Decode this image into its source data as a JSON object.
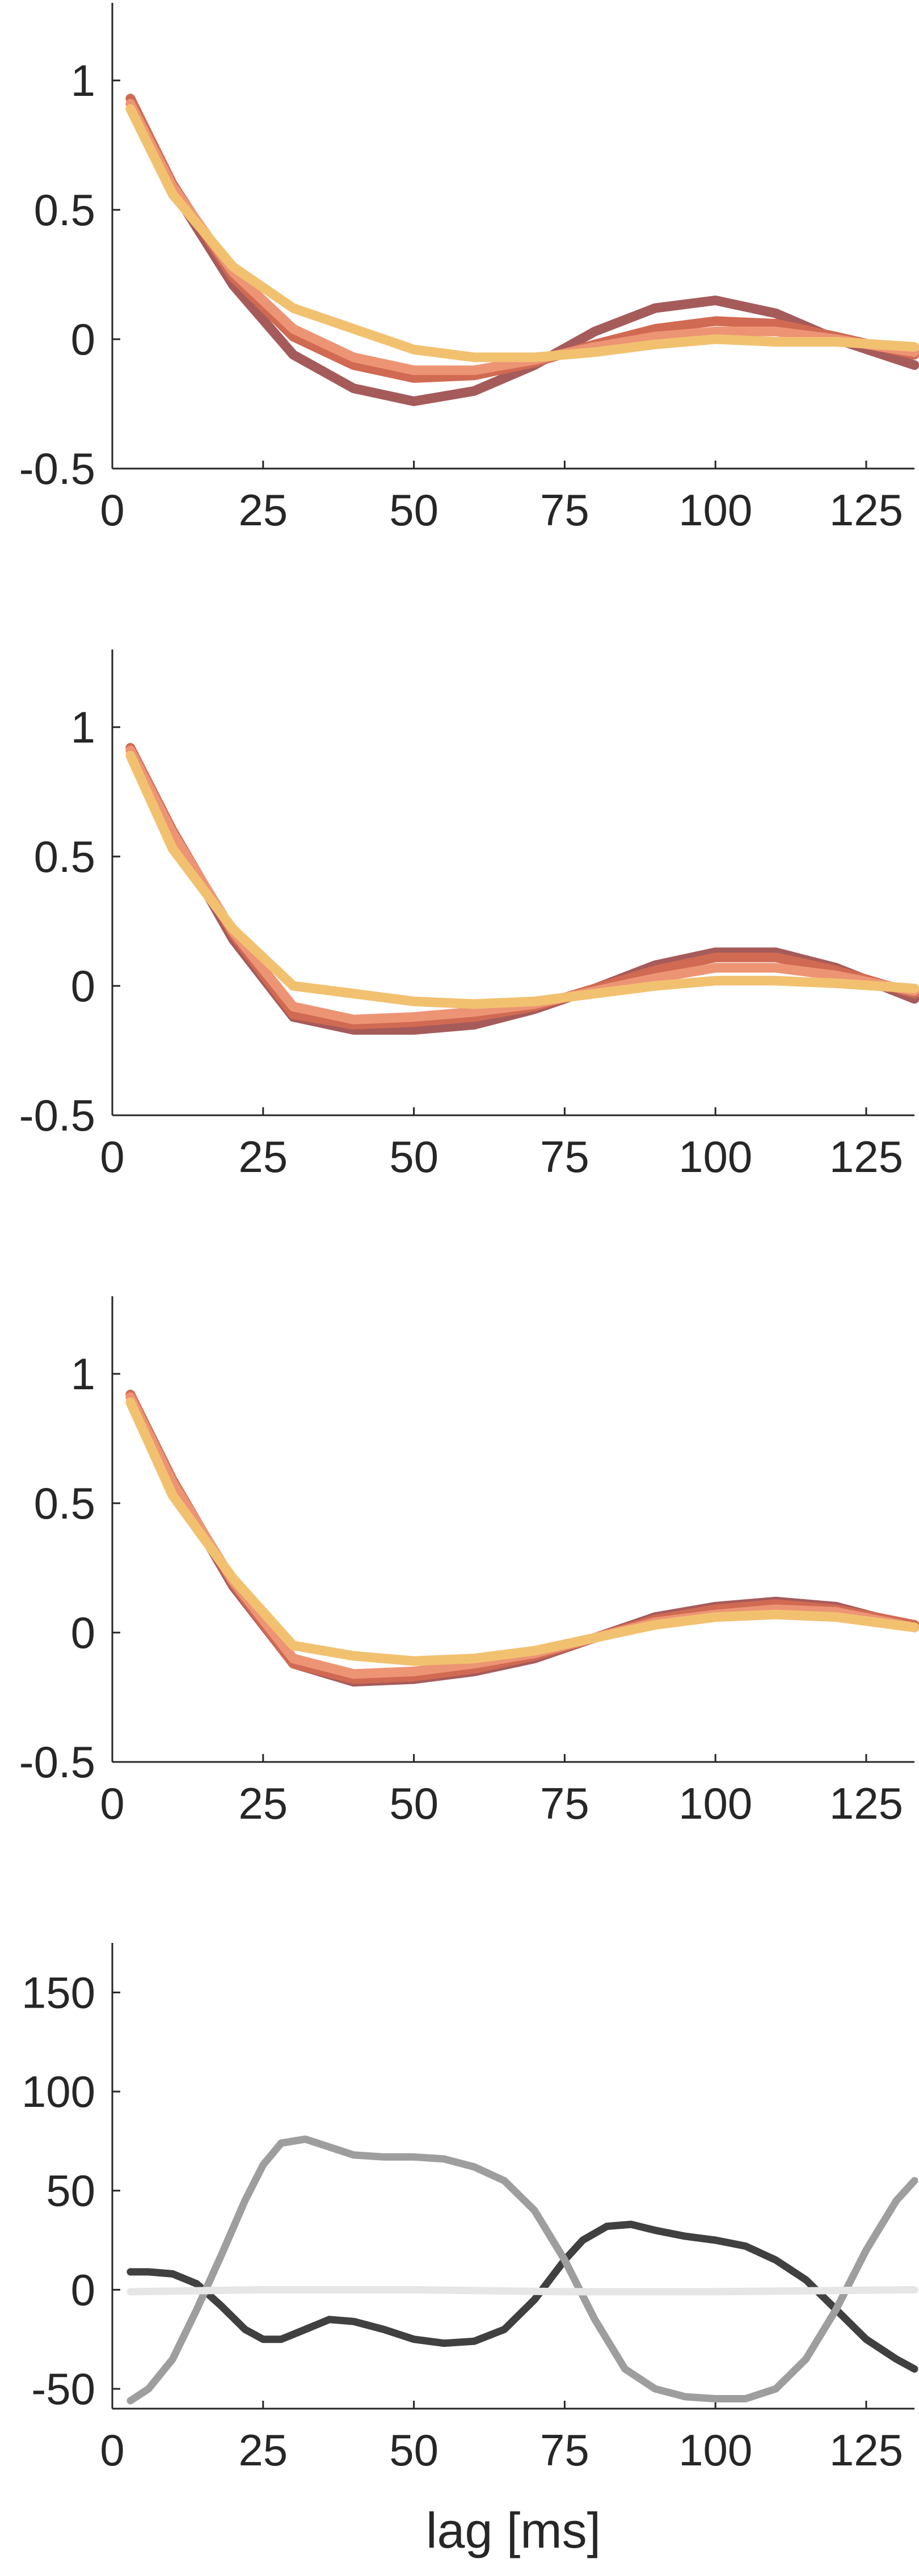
{
  "chart_data": [
    {
      "type": "line",
      "xlabel": "",
      "ylabel": "",
      "xlim": [
        0,
        133
      ],
      "ylim": [
        -0.5,
        1.3
      ],
      "xticks": [
        0,
        25,
        50,
        75,
        100,
        125
      ],
      "yticks": [
        -0.5,
        0,
        0.5,
        1
      ],
      "grid": false,
      "series": [
        {
          "color": "#a65b5b",
          "x": [
            3,
            10,
            20,
            30,
            40,
            50,
            60,
            70,
            80,
            90,
            100,
            110,
            120,
            133
          ],
          "y": [
            0.93,
            0.58,
            0.21,
            -0.06,
            -0.19,
            -0.24,
            -0.2,
            -0.1,
            0.03,
            0.12,
            0.15,
            0.1,
            0.0,
            -0.1
          ]
        },
        {
          "color": "#d16a52",
          "x": [
            3,
            10,
            20,
            30,
            40,
            50,
            60,
            70,
            80,
            90,
            100,
            110,
            120,
            133
          ],
          "y": [
            0.93,
            0.6,
            0.24,
            0.01,
            -0.1,
            -0.15,
            -0.14,
            -0.09,
            -0.02,
            0.04,
            0.07,
            0.06,
            0.01,
            -0.06
          ]
        },
        {
          "color": "#ed9475",
          "x": [
            3,
            10,
            20,
            30,
            40,
            50,
            60,
            70,
            80,
            90,
            100,
            110,
            120,
            133
          ],
          "y": [
            0.91,
            0.59,
            0.26,
            0.04,
            -0.07,
            -0.12,
            -0.12,
            -0.08,
            -0.03,
            0.01,
            0.03,
            0.03,
            0.0,
            -0.05
          ]
        },
        {
          "color": "#f2c170",
          "x": [
            3,
            10,
            20,
            30,
            40,
            50,
            60,
            70,
            80,
            90,
            100,
            110,
            120,
            133
          ],
          "y": [
            0.89,
            0.56,
            0.28,
            0.12,
            0.04,
            -0.04,
            -0.07,
            -0.07,
            -0.05,
            -0.02,
            0.0,
            -0.01,
            -0.01,
            -0.03
          ]
        }
      ]
    },
    {
      "type": "line",
      "xlabel": "",
      "ylabel": "",
      "xlim": [
        0,
        133
      ],
      "ylim": [
        -0.5,
        1.3
      ],
      "xticks": [
        0,
        25,
        50,
        75,
        100,
        125
      ],
      "yticks": [
        -0.5,
        0,
        0.5,
        1
      ],
      "grid": false,
      "series": [
        {
          "color": "#a65b5b",
          "x": [
            3,
            10,
            20,
            30,
            40,
            50,
            60,
            70,
            80,
            90,
            100,
            110,
            120,
            133
          ],
          "y": [
            0.92,
            0.59,
            0.18,
            -0.12,
            -0.17,
            -0.17,
            -0.15,
            -0.09,
            -0.01,
            0.08,
            0.13,
            0.13,
            0.07,
            -0.05
          ]
        },
        {
          "color": "#d16a52",
          "x": [
            3,
            10,
            20,
            30,
            40,
            50,
            60,
            70,
            80,
            90,
            100,
            110,
            120,
            133
          ],
          "y": [
            0.92,
            0.6,
            0.2,
            -0.11,
            -0.15,
            -0.14,
            -0.12,
            -0.08,
            -0.01,
            0.06,
            0.11,
            0.11,
            0.06,
            -0.03
          ]
        },
        {
          "color": "#ed9475",
          "x": [
            3,
            10,
            20,
            30,
            40,
            50,
            60,
            70,
            80,
            90,
            100,
            110,
            120,
            133
          ],
          "y": [
            0.91,
            0.59,
            0.21,
            -0.08,
            -0.13,
            -0.12,
            -0.1,
            -0.07,
            -0.02,
            0.03,
            0.07,
            0.07,
            0.04,
            -0.02
          ]
        },
        {
          "color": "#f2c170",
          "x": [
            3,
            10,
            20,
            30,
            40,
            50,
            60,
            70,
            80,
            90,
            100,
            110,
            120,
            133
          ],
          "y": [
            0.89,
            0.53,
            0.22,
            0.0,
            -0.03,
            -0.06,
            -0.07,
            -0.06,
            -0.03,
            0.0,
            0.02,
            0.02,
            0.01,
            -0.01
          ]
        }
      ]
    },
    {
      "type": "line",
      "xlabel": "",
      "ylabel": "",
      "xlim": [
        0,
        133
      ],
      "ylim": [
        -0.5,
        1.3
      ],
      "xticks": [
        0,
        25,
        50,
        75,
        100,
        125
      ],
      "yticks": [
        -0.5,
        0,
        0.5,
        1
      ],
      "grid": false,
      "series": [
        {
          "color": "#a65b5b",
          "x": [
            3,
            10,
            20,
            30,
            40,
            50,
            60,
            70,
            80,
            90,
            100,
            110,
            120,
            133
          ],
          "y": [
            0.92,
            0.58,
            0.18,
            -0.12,
            -0.19,
            -0.18,
            -0.15,
            -0.1,
            -0.02,
            0.06,
            0.1,
            0.12,
            0.1,
            0.02
          ]
        },
        {
          "color": "#d16a52",
          "x": [
            3,
            10,
            20,
            30,
            40,
            50,
            60,
            70,
            80,
            90,
            100,
            110,
            120,
            133
          ],
          "y": [
            0.92,
            0.59,
            0.19,
            -0.12,
            -0.18,
            -0.17,
            -0.14,
            -0.09,
            -0.02,
            0.05,
            0.09,
            0.11,
            0.09,
            0.03
          ]
        },
        {
          "color": "#ed9475",
          "x": [
            3,
            10,
            20,
            30,
            40,
            50,
            60,
            70,
            80,
            90,
            100,
            110,
            120,
            133
          ],
          "y": [
            0.91,
            0.58,
            0.2,
            -0.1,
            -0.16,
            -0.15,
            -0.12,
            -0.08,
            -0.02,
            0.04,
            0.07,
            0.09,
            0.08,
            0.02
          ]
        },
        {
          "color": "#f2c170",
          "x": [
            3,
            10,
            20,
            30,
            40,
            50,
            60,
            70,
            80,
            90,
            100,
            110,
            120,
            133
          ],
          "y": [
            0.89,
            0.53,
            0.21,
            -0.05,
            -0.09,
            -0.11,
            -0.1,
            -0.07,
            -0.02,
            0.03,
            0.06,
            0.07,
            0.06,
            0.02
          ]
        }
      ]
    },
    {
      "type": "line",
      "xlabel": "lag [ms]",
      "ylabel": "",
      "xlim": [
        0,
        133
      ],
      "ylim": [
        -60,
        175
      ],
      "xticks": [
        0,
        25,
        50,
        75,
        100,
        125
      ],
      "yticks": [
        -50,
        0,
        50,
        100,
        150
      ],
      "grid": false,
      "series": [
        {
          "color": "#404040",
          "x": [
            3,
            6,
            10,
            14,
            18,
            22,
            25,
            28,
            32,
            36,
            40,
            45,
            50,
            55,
            60,
            65,
            70,
            75,
            78,
            82,
            86,
            90,
            95,
            100,
            105,
            110,
            115,
            120,
            125,
            130,
            133
          ],
          "y": [
            9,
            9,
            8,
            3,
            -8,
            -20,
            -25,
            -25,
            -20,
            -15,
            -16,
            -20,
            -25,
            -27,
            -26,
            -20,
            -5,
            15,
            25,
            32,
            33,
            30,
            27,
            25,
            22,
            15,
            5,
            -10,
            -25,
            -35,
            -40
          ]
        },
        {
          "color": "#9e9e9e",
          "x": [
            3,
            6,
            10,
            14,
            18,
            22,
            25,
            28,
            32,
            36,
            40,
            45,
            50,
            55,
            60,
            65,
            70,
            75,
            80,
            85,
            90,
            95,
            100,
            105,
            110,
            115,
            120,
            125,
            130,
            133
          ],
          "y": [
            -56,
            -50,
            -35,
            -10,
            17,
            45,
            63,
            74,
            76,
            72,
            68,
            67,
            67,
            66,
            62,
            55,
            40,
            15,
            -15,
            -40,
            -50,
            -54,
            -55,
            -55,
            -50,
            -35,
            -10,
            20,
            45,
            55
          ]
        },
        {
          "color": "#e6e6e6",
          "x": [
            3,
            25,
            50,
            75,
            100,
            133
          ],
          "y": [
            -1,
            0,
            0,
            -1,
            -1,
            0
          ]
        }
      ]
    }
  ]
}
